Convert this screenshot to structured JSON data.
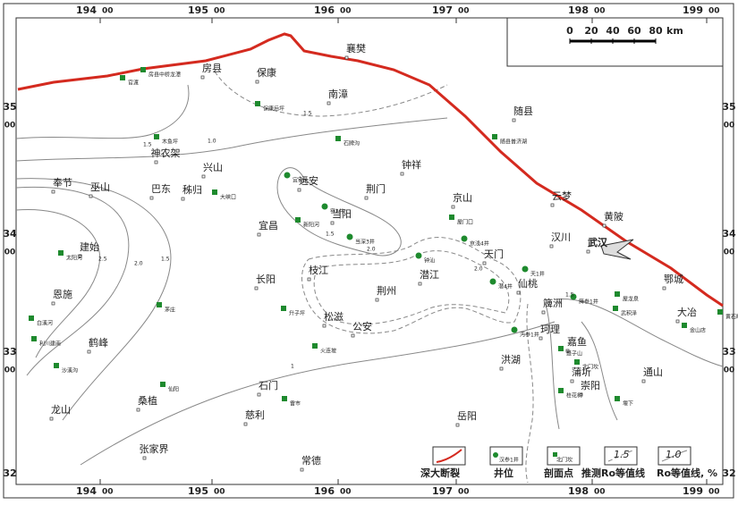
{
  "frame": {
    "top": [
      {
        "deg": "194",
        "min": "00"
      },
      {
        "deg": "195",
        "min": "00"
      },
      {
        "deg": "196",
        "min": "00"
      },
      {
        "deg": "197",
        "min": "00"
      },
      {
        "deg": "198",
        "min": "00"
      },
      {
        "deg": "199",
        "min": "00"
      }
    ],
    "bottom": [
      {
        "deg": "194",
        "min": "00"
      },
      {
        "deg": "195",
        "min": "00"
      },
      {
        "deg": "196",
        "min": "00"
      },
      {
        "deg": "197",
        "min": "00"
      },
      {
        "deg": "198",
        "min": "00"
      },
      {
        "deg": "199",
        "min": "00"
      }
    ],
    "left": [
      {
        "deg": "35",
        "min": "00"
      },
      {
        "deg": "34",
        "min": "00"
      },
      {
        "deg": "33",
        "min": "00"
      },
      {
        "deg": "32"
      }
    ],
    "right": [
      {
        "deg": "35",
        "min": "00"
      },
      {
        "deg": "34",
        "min": "00"
      },
      {
        "deg": "33",
        "min": "00"
      },
      {
        "deg": "32"
      }
    ]
  },
  "scale": {
    "ticks": [
      "0",
      "20",
      "40",
      "60",
      "80"
    ],
    "unit": "km"
  },
  "places": [
    "襄樊",
    "房县",
    "保康",
    "南漳",
    "随县",
    "神农架",
    "兴山",
    "钟祥",
    "奉节",
    "巫山",
    "巴东",
    "秭归",
    "远安",
    "荆门",
    "京山",
    "云梦",
    "当阳",
    "宜昌",
    "黄陂",
    "建始",
    "汉川",
    "武汉",
    "天门",
    "枝江",
    "潜江",
    "长阳",
    "荆州",
    "仙桃",
    "恩施",
    "鄂城",
    "大冶",
    "松滋",
    "公安",
    "珂理",
    "嘉鱼",
    "鹤峰",
    "洪湖",
    "蒲圻",
    "通山",
    "石门",
    "崇阳",
    "桑植",
    "龙山",
    "慈利",
    "岳阳",
    "张家界",
    "常德",
    "簰洲"
  ],
  "section_points": [
    "官渡",
    "房县中桥龙潭",
    "保康后坪",
    "木鱼坪",
    "石牌沟",
    "随县普济湖",
    "大峡口",
    "新阳河",
    "屋门口",
    "太阳河",
    "茅庄",
    "升子坪",
    "火连坡",
    "白溪河",
    "利川建南",
    "沙溪沟",
    "仙阳",
    "雷市",
    "屋龙泉",
    "武积泽",
    "金山店",
    "黄石曙光",
    "聂子山",
    "北门坎",
    "桂花树",
    "堰下"
  ],
  "wells": [
    "宜钩头",
    "窑2井",
    "当深3井",
    "京浅4井",
    "钟汕",
    "天1井",
    "潜4井",
    "沔参1井",
    "簰参1井"
  ],
  "contour_labels": [
    "1.5",
    "1.0",
    "1.5",
    "2.5",
    "2.0",
    "1.5",
    "1.5",
    "2.0",
    "2.0",
    "1.5",
    "1"
  ],
  "legend": {
    "fault": "深大断裂",
    "well": "井位",
    "well_sample": "汉参1井",
    "section": "剖面点",
    "section_sample": "北门坎",
    "inferred": "推测Ro等值线",
    "inferred_sample": "1.5",
    "measured": "Ro等值线, %",
    "measured_sample": "1.0"
  }
}
